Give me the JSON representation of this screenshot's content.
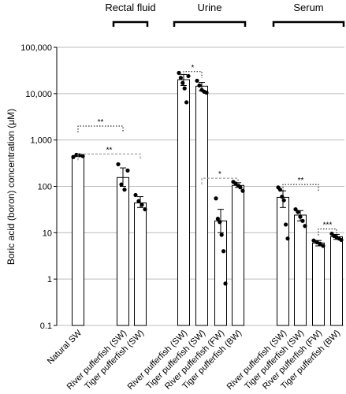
{
  "chart_data": {
    "type": "bar",
    "ylabel": "Boric acid (boron) concentration (μM)",
    "yscale": "log",
    "ylim": [
      0.1,
      100000
    ],
    "yticks": [
      "0.1",
      "1",
      "10",
      "100",
      "1,000",
      "10,000",
      "100,000"
    ],
    "grid": true,
    "groups": [
      {
        "label": "",
        "categories": [
          "Natural SW"
        ]
      },
      {
        "label": "Rectal fluid",
        "categories": [
          "River pufferfish (SW)",
          "Tiger pufferfish (SW)"
        ]
      },
      {
        "label": "Urine",
        "categories": [
          "River pufferfish (SW)",
          "Tiger pufferfish (SW)",
          "River pufferfish (FW)",
          "Tiger pufferfish (BW)"
        ]
      },
      {
        "label": "Serum",
        "categories": [
          "River pufferfish (SW)",
          "Tiger pufferfish (SW)",
          "River pufferfish (FW)",
          "Tiger pufferfish (BW)"
        ]
      }
    ],
    "bars": [
      {
        "category": "Natural SW",
        "group": "",
        "mean": 460,
        "error": [
          440,
          480
        ],
        "points": [
          430,
          480,
          470,
          450
        ]
      },
      {
        "category": "River pufferfish (SW)",
        "group": "Rectal fluid",
        "mean": 155,
        "error": [
          100,
          250
        ],
        "points": [
          300,
          110,
          85,
          220
        ]
      },
      {
        "category": "Tiger pufferfish (SW)",
        "group": "Rectal fluid",
        "mean": 44,
        "error": [
          35,
          60
        ],
        "points": [
          65,
          48,
          40,
          32
        ]
      },
      {
        "category": "River pufferfish (SW)",
        "group": "Urine",
        "mean": 20000,
        "error": [
          15000,
          26000
        ],
        "points": [
          28000,
          22000,
          17000,
          13000,
          6500,
          24000
        ]
      },
      {
        "category": "Tiger pufferfish (SW)",
        "group": "Urine",
        "mean": 14500,
        "error": [
          11500,
          17500
        ],
        "points": [
          19000,
          15000,
          12000,
          11000,
          10500
        ]
      },
      {
        "category": "River pufferfish (FW)",
        "group": "Urine",
        "mean": 18,
        "error": [
          10,
          32
        ],
        "points": [
          55,
          20,
          17,
          9,
          4,
          0.8
        ]
      },
      {
        "category": "Tiger pufferfish (BW)",
        "group": "Urine",
        "mean": 105,
        "error": [
          95,
          120
        ],
        "points": [
          125,
          115,
          105,
          95,
          80
        ]
      },
      {
        "category": "River pufferfish (SW)",
        "group": "Serum",
        "mean": 58,
        "error": [
          35,
          80
        ],
        "points": [
          95,
          85,
          60,
          50,
          15,
          7.5
        ]
      },
      {
        "category": "Tiger pufferfish (SW)",
        "group": "Serum",
        "mean": 24,
        "error": [
          18,
          30
        ],
        "points": [
          32,
          28,
          22,
          18,
          14
        ]
      },
      {
        "category": "River pufferfish (FW)",
        "group": "Serum",
        "mean": 6,
        "error": [
          5.2,
          6.8
        ],
        "points": [
          6.8,
          6.2,
          5.8,
          5.2
        ]
      },
      {
        "category": "Tiger pufferfish (BW)",
        "group": "Serum",
        "mean": 8.2,
        "error": [
          7.2,
          9.2
        ],
        "points": [
          9.5,
          8.5,
          8,
          7.5,
          7
        ]
      }
    ],
    "significance": [
      {
        "from": 0,
        "to": 2,
        "y": 500,
        "label": "**",
        "style": "dashed"
      },
      {
        "from": 0,
        "to": 1,
        "y": 2000,
        "label": "**",
        "style": "dotted"
      },
      {
        "from": 3,
        "to": 4,
        "y": 30000,
        "label": "*",
        "style": "dotted"
      },
      {
        "from": 4,
        "to": 6,
        "y": 150,
        "label": "*",
        "style": "dashed"
      },
      {
        "from": 7,
        "to": 9,
        "y": 110,
        "label": "**",
        "style": "dotted"
      },
      {
        "from": 9,
        "to": 10,
        "y": 12,
        "label": "***",
        "style": "dotted"
      }
    ]
  }
}
